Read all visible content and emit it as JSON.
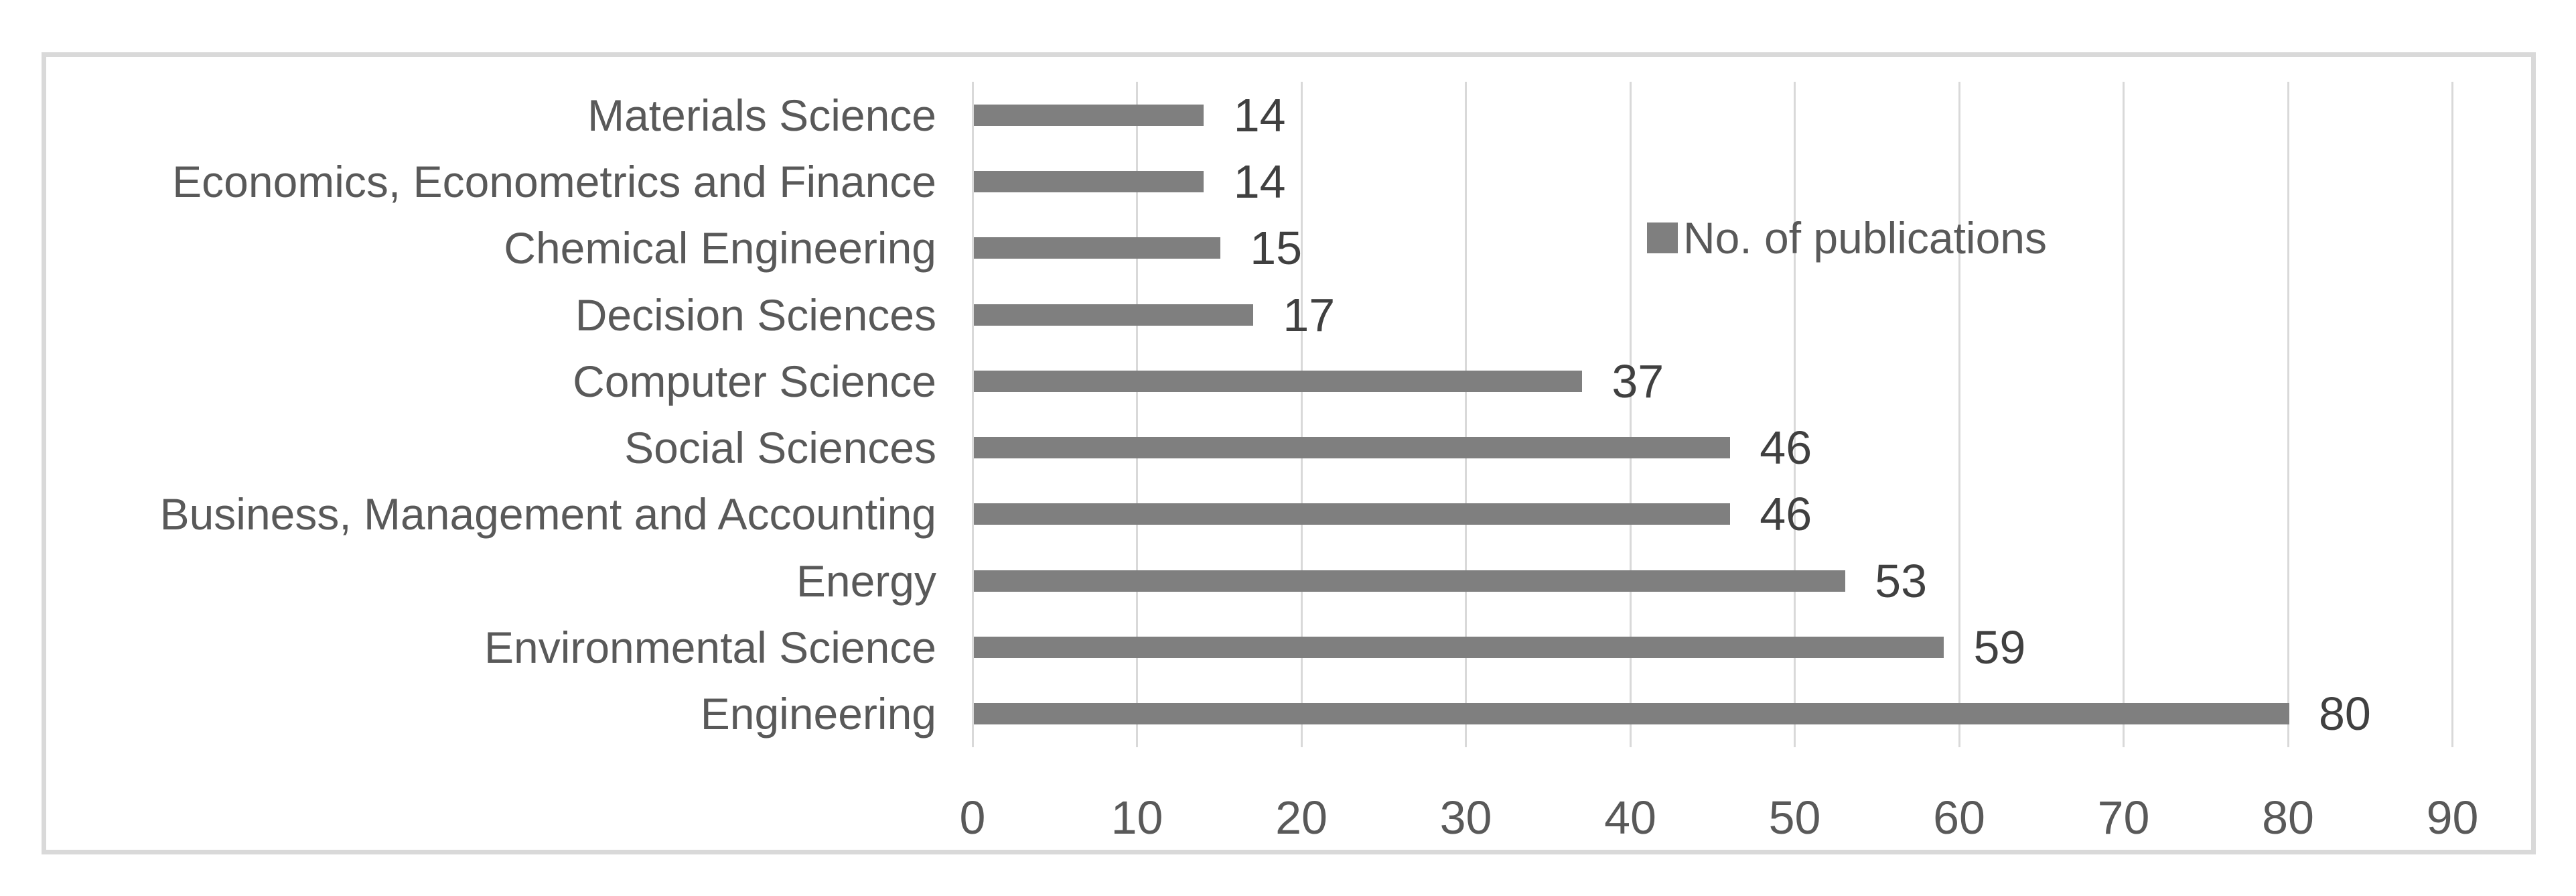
{
  "chart_data": {
    "type": "bar",
    "orientation": "horizontal",
    "title": "",
    "xlabel": "",
    "ylabel": "",
    "categories": [
      "Materials Science",
      "Economics, Econometrics and Finance",
      "Chemical Engineering",
      "Decision Sciences",
      "Computer Science",
      "Social Sciences",
      "Business, Management and Accounting",
      "Energy",
      "Environmental Science",
      "Engineering"
    ],
    "values": [
      14,
      14,
      15,
      17,
      37,
      46,
      46,
      53,
      59,
      80
    ],
    "data_labels": [
      "14",
      "14",
      "15",
      "17",
      "37",
      "46",
      "46",
      "53",
      "59",
      "80"
    ],
    "x_ticks": [
      0,
      10,
      20,
      30,
      40,
      50,
      60,
      70,
      80,
      90
    ],
    "xlim": [
      0,
      90
    ],
    "grid": "vertical-gridlines",
    "legend": {
      "label": "No. of publications",
      "position": "inside-upper-right"
    },
    "colors": {
      "bar": "#7f7f7f",
      "gridline": "#d9d9d9",
      "frame_border": "#d9d9d9",
      "category_text": "#595959",
      "tick_text": "#595959",
      "value_text": "#404040",
      "legend_text": "#595959",
      "background": "#ffffff"
    }
  }
}
